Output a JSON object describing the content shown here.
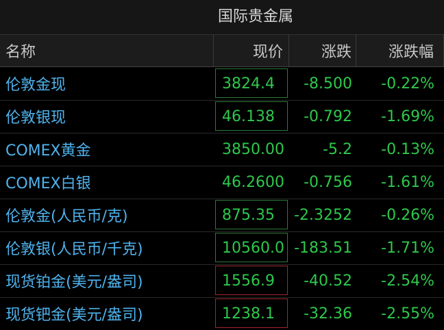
{
  "header": {
    "title": "国际贵金属"
  },
  "table": {
    "columns": [
      "名称",
      "现价",
      "涨跌",
      "涨跌幅"
    ],
    "rows": [
      [
        "伦敦金现",
        "3824.4",
        "-8.500",
        "-0.22%"
      ],
      [
        "伦敦银现",
        "46.138",
        "-0.792",
        "-1.69%"
      ],
      [
        "COMEX黄金",
        "3850.00",
        "-5.2",
        "-0.13%"
      ],
      [
        "COMEX白银",
        "46.2600",
        "-0.756",
        "-1.61%"
      ],
      [
        "伦敦金(人民币/克)",
        "875.35",
        "-2.3252",
        "-0.26%"
      ],
      [
        "伦敦银(人民币/千克)",
        "10560.00",
        "-183.51",
        "-1.71%"
      ],
      [
        "现货铂金(美元/盎司)",
        "1556.9",
        "-40.52",
        "-2.54%"
      ],
      [
        "现货钯金(美元/盎司)",
        "1238.1",
        "-32.36",
        "-2.55%"
      ]
    ],
    "price_box_colors": [
      "#2d7a3a",
      "#2d7a3a",
      null,
      null,
      "#2d7a3a",
      "#2d7a3a",
      "#a0282c",
      "#a0282c"
    ],
    "name_color": "#4fb3ee",
    "value_color": "#2ec84c"
  }
}
